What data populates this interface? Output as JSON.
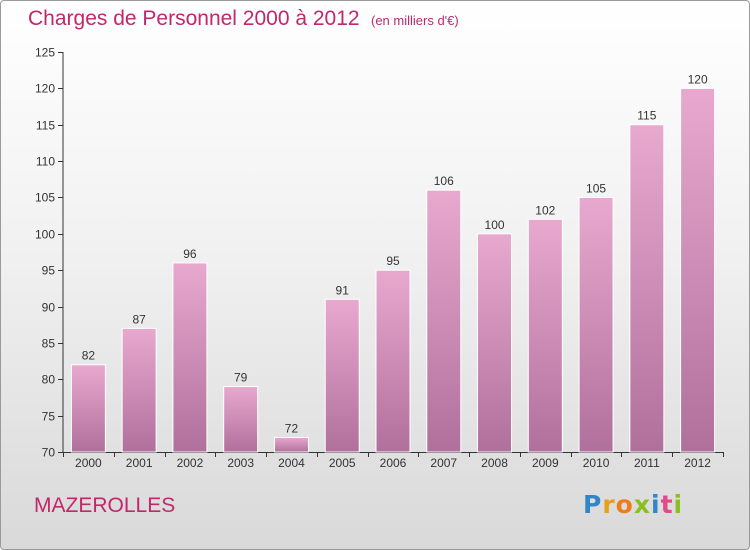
{
  "header": {
    "title": "Charges de Personnel 2000 à 2012",
    "subtitle": "(en milliers d'€)"
  },
  "footer": {
    "place": "MAZEROLLES",
    "logo": {
      "text": "Proxiti",
      "letters": [
        "P",
        "r",
        "o",
        "x",
        "i",
        "t",
        "i"
      ],
      "colors": [
        "#2f86c8",
        "#e8a01c",
        "#ef7c1a",
        "#8bbf1f",
        "#2f86c8",
        "#e04a8a",
        "#8bbf1f"
      ]
    }
  },
  "colors": {
    "bar_top": "#e8a9cf",
    "bar_bottom": "#b0709c",
    "bar_edge": "#ffffff",
    "axis": "#333333",
    "grid": "#cccccc",
    "accent": "#c2276c"
  },
  "chart_data": {
    "type": "bar",
    "title": "Charges de Personnel 2000 à 2012",
    "subtitle": "(en milliers d'€)",
    "categories": [
      "2000",
      "2001",
      "2002",
      "2003",
      "2004",
      "2005",
      "2006",
      "2007",
      "2008",
      "2009",
      "2010",
      "2011",
      "2012"
    ],
    "values": [
      82,
      87,
      96,
      79,
      72,
      91,
      95,
      106,
      100,
      102,
      105,
      115,
      120
    ],
    "ylim": [
      70,
      125
    ],
    "yticks": [
      70,
      75,
      80,
      85,
      90,
      95,
      100,
      105,
      110,
      115,
      120,
      125
    ],
    "xlabel": "",
    "ylabel": "",
    "grid": false,
    "legend": "none",
    "data_labels": true
  }
}
